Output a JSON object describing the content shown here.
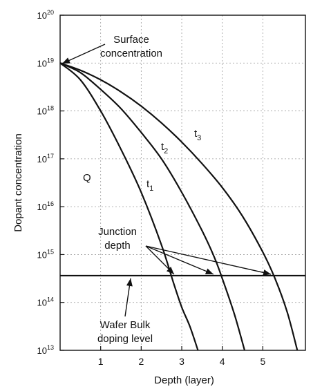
{
  "chart_data": {
    "type": "line",
    "title": "",
    "xlabel": "Depth (layer)",
    "ylabel": "Dopant concentration",
    "xlim": [
      0,
      6.05
    ],
    "ylim": [
      13,
      20
    ],
    "y_log_scale": true,
    "grid": true,
    "x_ticks": [
      "1",
      "2",
      "3",
      "4",
      "5"
    ],
    "x_tick_values": [
      1,
      2,
      3,
      4,
      5
    ],
    "y_ticks": [
      {
        "base": "10",
        "exp": "13",
        "value": 13
      },
      {
        "base": "10",
        "exp": "14",
        "value": 14
      },
      {
        "base": "10",
        "exp": "15",
        "value": 15
      },
      {
        "base": "10",
        "exp": "16",
        "value": 16
      },
      {
        "base": "10",
        "exp": "17",
        "value": 17
      },
      {
        "base": "10",
        "exp": "18",
        "value": 18
      },
      {
        "base": "10",
        "exp": "19",
        "value": 19
      },
      {
        "base": "10",
        "exp": "20",
        "value": 20
      }
    ],
    "series": [
      {
        "name": "t1",
        "label_main": "t",
        "label_sub": "1",
        "x": [
          0,
          0.5,
          1.0,
          1.5,
          2.0,
          2.5,
          2.8,
          3.0,
          3.2,
          3.4
        ],
        "y": [
          19.0,
          18.65,
          18.0,
          17.2,
          16.3,
          15.2,
          14.4,
          13.9,
          13.5,
          13.0
        ]
      },
      {
        "name": "t2",
        "label_main": "t",
        "label_sub": "2",
        "x": [
          0,
          0.5,
          1.0,
          1.5,
          2.0,
          2.5,
          3.0,
          3.5,
          3.8,
          4.0,
          4.3,
          4.55
        ],
        "y": [
          19.0,
          18.8,
          18.45,
          18.05,
          17.55,
          17.0,
          16.3,
          15.5,
          14.95,
          14.5,
          13.75,
          13.0
        ]
      },
      {
        "name": "t3",
        "label_main": "t",
        "label_sub": "3",
        "x": [
          0,
          0.5,
          1.0,
          1.5,
          2.0,
          2.5,
          3.0,
          3.5,
          4.0,
          4.5,
          5.0,
          5.3,
          5.6,
          5.85
        ],
        "y": [
          19.0,
          18.85,
          18.65,
          18.4,
          18.1,
          17.75,
          17.35,
          16.9,
          16.4,
          15.8,
          15.05,
          14.5,
          13.8,
          13.0
        ]
      }
    ],
    "bulk_doping_level": 14.56,
    "annotations": {
      "surface": "Surface\nconcentration",
      "junction": "Junction\ndepth",
      "bulk": "Wafer Bulk\ndoping level",
      "q": "Q"
    }
  }
}
